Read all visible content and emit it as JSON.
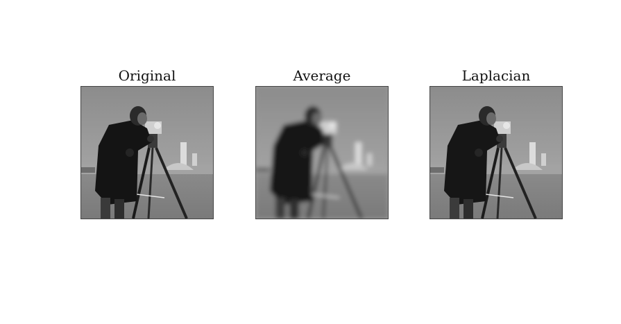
{
  "panels": [
    {
      "title": "Original"
    },
    {
      "title": "Average"
    },
    {
      "title": "Laplacian"
    }
  ]
}
